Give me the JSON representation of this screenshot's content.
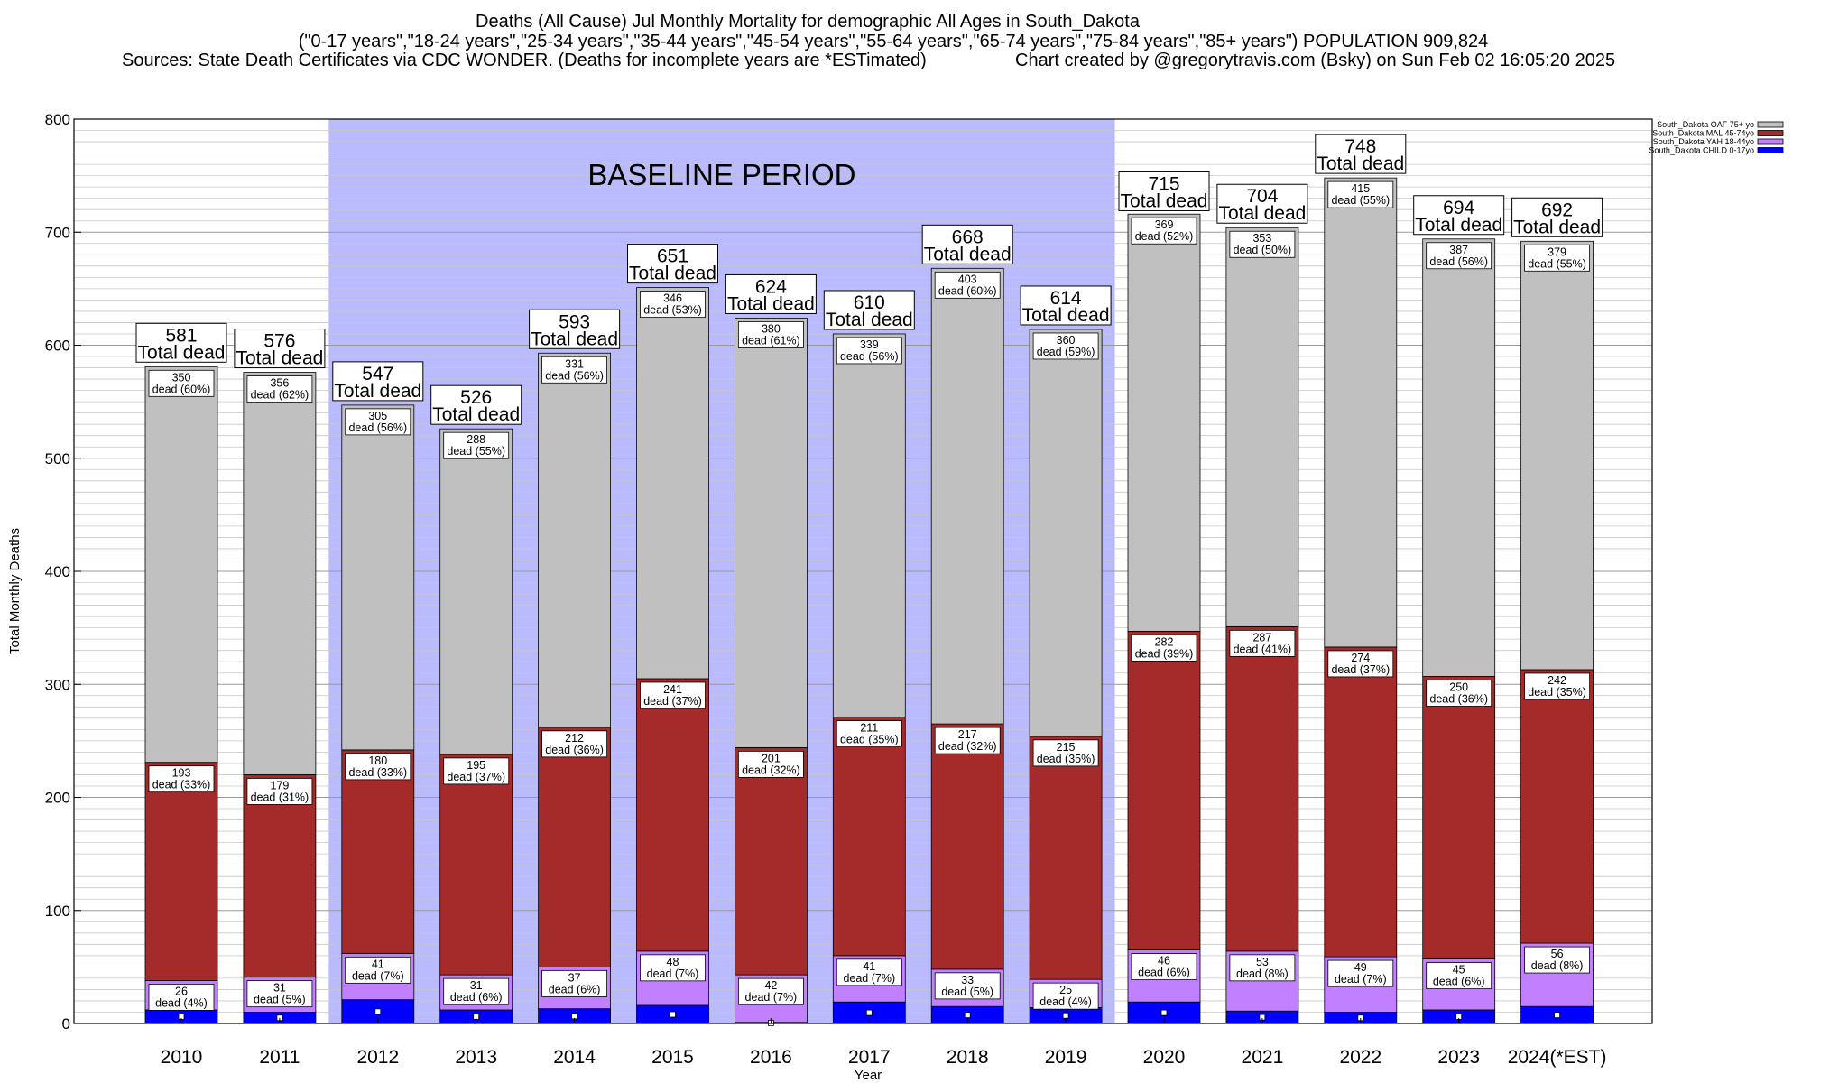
{
  "header": {
    "title_line1": "Deaths (All Cause) Jul Monthly Mortality for demographic All Ages in South_Dakota",
    "title_line2": "(\"0-17 years\",\"18-24 years\",\"25-34 years\",\"35-44 years\",\"45-54 years\",\"55-64 years\",\"65-74 years\",\"75-84 years\",\"85+ years\") POPULATION 909,824",
    "title_line3_left": "Sources: State Death Certificates via CDC WONDER. (Deaths for incomplete years are *ESTimated)",
    "title_line3_right": "Chart created by @gregorytravis.com (Bsky) on Sun Feb 02 16:05:20 2025"
  },
  "chart_data": {
    "type": "bar",
    "stacked": true,
    "xlabel": "Year",
    "ylabel": "Total Monthly Deaths",
    "ylim": [
      0,
      800
    ],
    "yticks": [
      0,
      100,
      200,
      300,
      400,
      500,
      600,
      700,
      800
    ],
    "grid": true,
    "legend_position": "top-right",
    "categories": [
      "2010",
      "2011",
      "2012",
      "2013",
      "2014",
      "2015",
      "2016",
      "2017",
      "2018",
      "2019",
      "2020",
      "2021",
      "2022",
      "2023",
      "2024(*EST)"
    ],
    "baseline_period": {
      "label": "BASELINE PERIOD",
      "from": "2012",
      "to": "2019",
      "color": "#babaff"
    },
    "totals": [
      581,
      576,
      547,
      526,
      593,
      651,
      624,
      610,
      668,
      614,
      715,
      704,
      748,
      694,
      692
    ],
    "total_suffix": "Total dead",
    "segment_label_prefix": "dead",
    "series": [
      {
        "name": "South_Dakota CHILD 0-17yo",
        "color": "#0000ff",
        "values": [
          12,
          10,
          21,
          12,
          13,
          16,
          1,
          19,
          15,
          14,
          19,
          11,
          10,
          12,
          15
        ]
      },
      {
        "name": "South_Dakota YAH 18-44yo",
        "color": "#c080ff",
        "values": [
          26,
          31,
          41,
          31,
          37,
          48,
          42,
          41,
          33,
          25,
          46,
          53,
          49,
          45,
          56
        ],
        "pct": [
          "4%",
          "5%",
          "7%",
          "6%",
          "6%",
          "7%",
          "7%",
          "7%",
          "5%",
          "4%",
          "6%",
          "8%",
          "7%",
          "6%",
          "8%"
        ]
      },
      {
        "name": "South_Dakota MAL 45-74yo",
        "color": "#a52a2a",
        "values": [
          193,
          179,
          180,
          195,
          212,
          241,
          201,
          211,
          217,
          215,
          282,
          287,
          274,
          250,
          242
        ],
        "pct": [
          "33%",
          "31%",
          "33%",
          "37%",
          "36%",
          "37%",
          "32%",
          "35%",
          "32%",
          "35%",
          "39%",
          "41%",
          "37%",
          "36%",
          "35%"
        ]
      },
      {
        "name": "South_Dakota OAF 75+ yo",
        "color": "#c0c0c0",
        "values": [
          350,
          356,
          305,
          288,
          331,
          346,
          380,
          339,
          403,
          360,
          369,
          353,
          415,
          387,
          379
        ],
        "pct": [
          "60%",
          "62%",
          "56%",
          "55%",
          "56%",
          "53%",
          "61%",
          "56%",
          "60%",
          "59%",
          "52%",
          "50%",
          "55%",
          "56%",
          "55%"
        ]
      }
    ],
    "legend": [
      {
        "name": "South_Dakota OAF 75+ yo",
        "color": "#c0c0c0"
      },
      {
        "name": "South_Dakota MAL 45-74yo",
        "color": "#a52a2a"
      },
      {
        "name": "South_Dakota YAH 18-44yo",
        "color": "#c080ff"
      },
      {
        "name": "South_Dakota CHILD 0-17yo",
        "color": "#0000ff"
      }
    ]
  }
}
